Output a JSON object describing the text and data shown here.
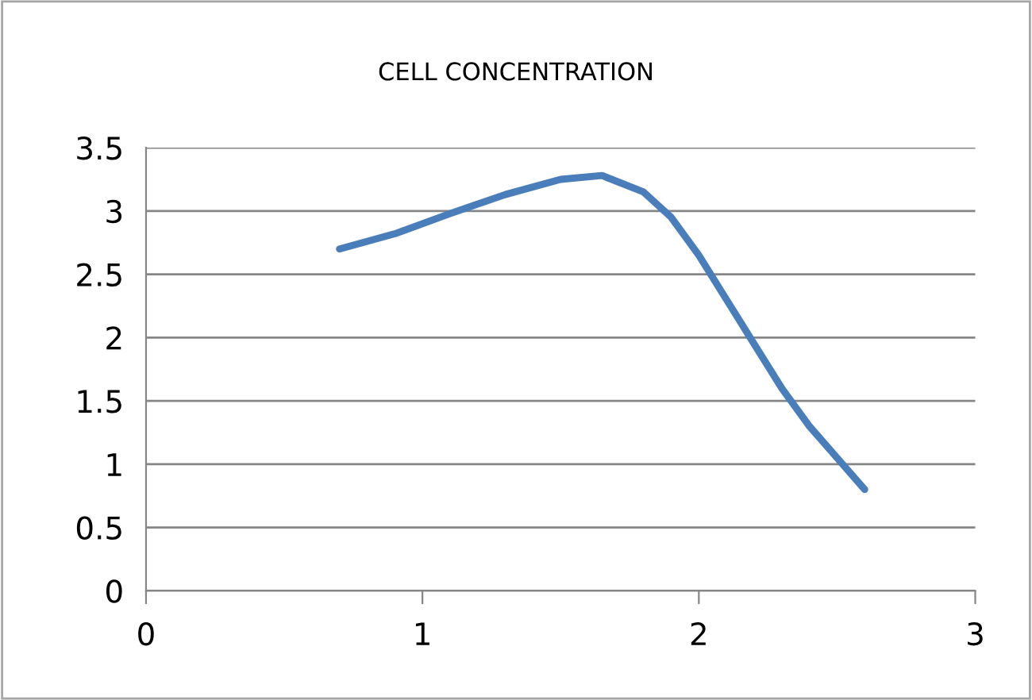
{
  "chart_data": {
    "type": "line",
    "title": "CELL CONCENTRATION",
    "x": [
      0.7,
      0.9,
      1.1,
      1.3,
      1.5,
      1.65,
      1.8,
      1.9,
      2.0,
      2.1,
      2.2,
      2.3,
      2.4,
      2.5,
      2.6
    ],
    "series": [
      {
        "color": "#4a7ebb",
        "values": [
          2.7,
          2.82,
          2.98,
          3.13,
          3.25,
          3.28,
          3.15,
          2.95,
          2.65,
          2.3,
          1.95,
          1.6,
          1.3,
          1.05,
          0.8
        ]
      }
    ],
    "xlim": [
      0,
      3
    ],
    "xticks": [
      0,
      1,
      2,
      3
    ],
    "ylim": [
      0,
      3.5
    ],
    "yticks": [
      0,
      0.5,
      1,
      1.5,
      2,
      2.5,
      3,
      3.5
    ],
    "grid": "y",
    "legend": false,
    "marker": "none",
    "line_style": "solid"
  }
}
